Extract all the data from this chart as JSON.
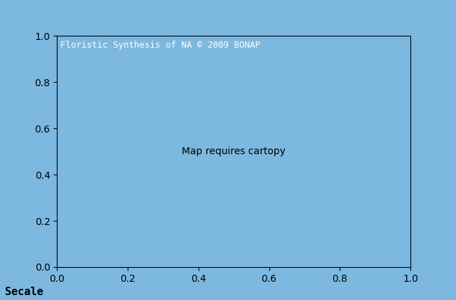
{
  "title": "Floristic Synthesis of NA © 2009 BONAP",
  "subtitle": "Secale",
  "title_fontsize": 9,
  "subtitle_fontsize": 11,
  "background_color": "#7cb8e0",
  "ocean_color": "#7cb8e0",
  "us_dark_blue": "#0000b0",
  "us_cyan": "#00e5e5",
  "us_orange": "#d4820a",
  "canada_color": "#0000b0",
  "mexico_gray": "#a0a0a0",
  "county_edge_color": "#5a3a00",
  "state_edge_color": "#000000",
  "country_edge_color": "#000000",
  "great_lakes_color": "#7cb8e0",
  "figsize": [
    6.5,
    4.28
  ],
  "dpi": 100
}
